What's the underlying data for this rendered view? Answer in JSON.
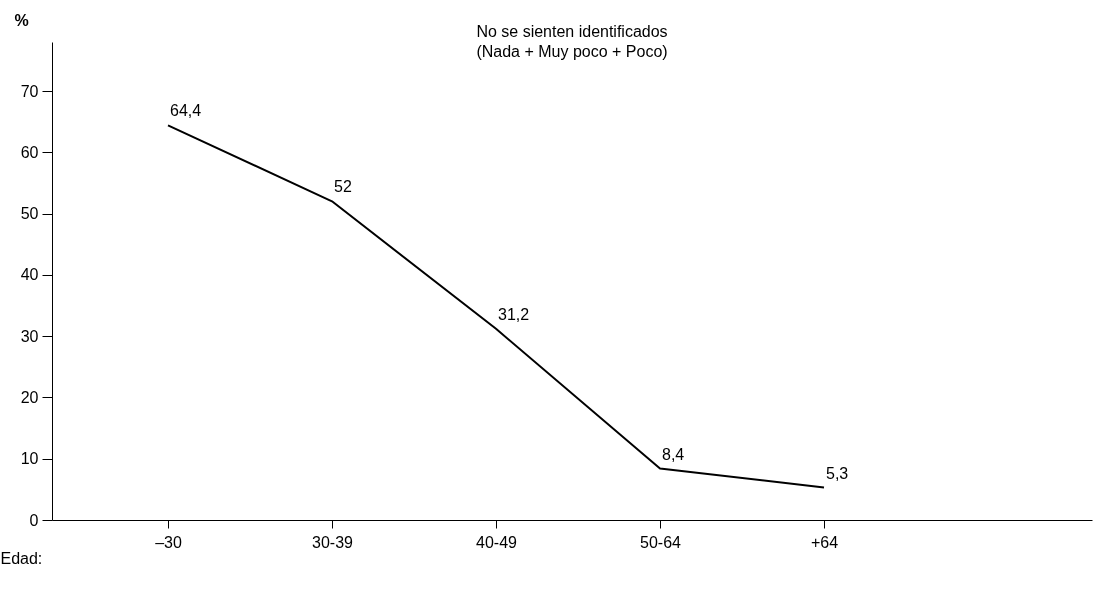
{
  "chart_data": {
    "type": "line",
    "title": "No se sienten identificados",
    "subtitle": "(Nada + Muy poco + Poco)",
    "xlabel": "Edad:",
    "ylabel": "%",
    "categories": [
      "–30",
      "30-39",
      "40-49",
      "50-64",
      "+64"
    ],
    "series": [
      {
        "color": "#000000",
        "values": [
          64.4,
          52,
          31.2,
          8.4,
          5.3
        ],
        "value_labels": [
          "64,4",
          "52",
          "31,2",
          "8,4",
          "5,3"
        ]
      }
    ],
    "ylim": [
      0,
      78
    ],
    "yticks": [
      0,
      10,
      20,
      30,
      40,
      50,
      60,
      70
    ],
    "grid": false,
    "marker": "none",
    "line_style": "solid"
  }
}
